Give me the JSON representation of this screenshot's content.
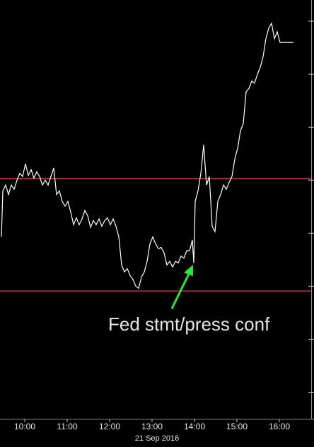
{
  "chart_data": {
    "type": "line",
    "x_label": "21 Sep 2016",
    "color": "#ffffff",
    "x": [
      567,
      569,
      573,
      577,
      581,
      585,
      589,
      593,
      597,
      601,
      605,
      609,
      613,
      617,
      621,
      625,
      629,
      633,
      637,
      641,
      645,
      649,
      653,
      657,
      661,
      665,
      669,
      673,
      677,
      681,
      685,
      689,
      693,
      697,
      701,
      705,
      709,
      713,
      717,
      721,
      725,
      729,
      733,
      737,
      741,
      745,
      749,
      753,
      757,
      761,
      765,
      769,
      773,
      777,
      781,
      785,
      789,
      793,
      797,
      801,
      805,
      809,
      813,
      817,
      821,
      825,
      829,
      833,
      837,
      839,
      841,
      845,
      849,
      853,
      857,
      861,
      865,
      869,
      873,
      877,
      881,
      885,
      889,
      893,
      897,
      901,
      905,
      909,
      913,
      917,
      921,
      925,
      929,
      933,
      937,
      941,
      945,
      949,
      953,
      957,
      961,
      965,
      970,
      980
    ],
    "values": [
      2.93,
      3.8,
      3.91,
      3.73,
      3.91,
      3.83,
      4,
      4.13,
      4.07,
      4.31,
      4.09,
      4.2,
      4.04,
      4.16,
      4.07,
      3.91,
      4,
      3.91,
      4.07,
      4.23,
      3.73,
      3.8,
      3.6,
      3.51,
      3.6,
      3.4,
      3.16,
      3.29,
      3.16,
      3.27,
      3.43,
      3.33,
      3.11,
      3.24,
      3.16,
      3.27,
      3.13,
      3.24,
      3.29,
      3.16,
      3.27,
      3.13,
      2.93,
      2.4,
      2.27,
      2.33,
      2.2,
      2.13,
      2,
      1.96,
      2.17,
      2.27,
      2.47,
      2.8,
      2.93,
      2.8,
      2.71,
      2.73,
      2.63,
      2.4,
      2.47,
      2.36,
      2.47,
      2.44,
      2.57,
      2.53,
      2.67,
      2.67,
      2.87,
      2.44,
      3.6,
      3.8,
      4.13,
      4.67,
      3.91,
      4.07,
      3.13,
      3.03,
      3.6,
      3.73,
      3.91,
      3.83,
      3.96,
      4.07,
      4.4,
      4.6,
      4.93,
      5.07,
      5.67,
      5.73,
      5.87,
      5.83,
      6,
      6.13,
      6.33,
      6.67,
      6.87,
      6.96,
      6.67,
      6.8,
      6.6,
      6.6,
      6.6,
      6.6
    ],
    "xlim": [
      565,
      1009
    ],
    "ylim": [
      -0.5,
      7.4
    ],
    "xticks": [
      {
        "value": 600,
        "label": "10:00"
      },
      {
        "value": 660,
        "label": "11:00"
      },
      {
        "value": 720,
        "label": "12:00"
      },
      {
        "value": 780,
        "label": "13:00"
      },
      {
        "value": 840,
        "label": "14:00"
      },
      {
        "value": 900,
        "label": "15:00"
      },
      {
        "value": 960,
        "label": "16:00"
      }
    ],
    "yticks": [
      0,
      1,
      2,
      3,
      4,
      5,
      6,
      7
    ],
    "reference_lines": [
      {
        "value": 4.03,
        "color": "#e8313c"
      },
      {
        "value": 1.91,
        "color": "#cc2230"
      }
    ],
    "annotation": {
      "text": "Fed stmt/press conf",
      "color": "#2ee63a"
    }
  }
}
